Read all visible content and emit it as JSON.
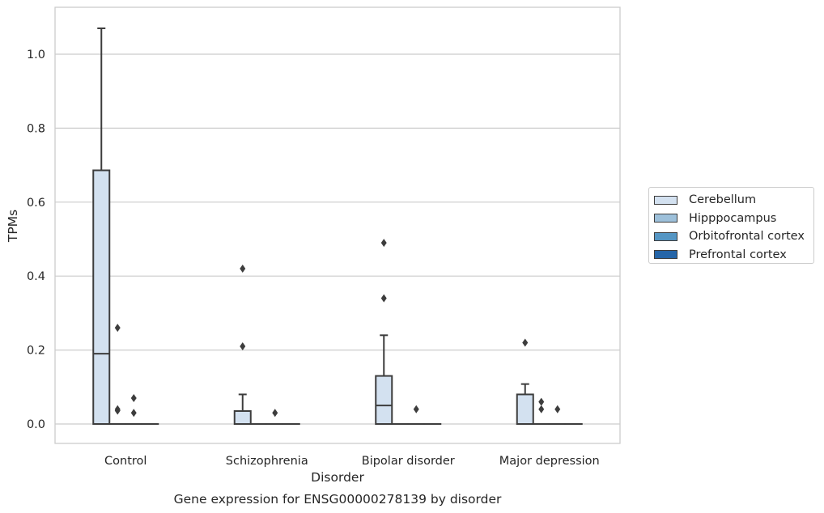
{
  "chart_data": {
    "type": "box",
    "title": "Gene expression for ENSG00000278139 by disorder",
    "xlabel": "Disorder",
    "ylabel": "TPMs",
    "ylim": [
      -0.05,
      1.13
    ],
    "yticks": [
      0.0,
      0.2,
      0.4,
      0.6,
      0.8,
      1.0
    ],
    "ytick_labels": [
      "0.0",
      "0.2",
      "0.4",
      "0.6",
      "0.8",
      "1.0"
    ],
    "grid": "horizontal",
    "legend_position": "outside-right",
    "categories": [
      "Control",
      "Schizophrenia",
      "Bipolar disorder",
      "Major depression"
    ],
    "series": [
      {
        "name": "Cerebellum",
        "color": "#d3e1f0",
        "boxes": [
          {
            "category": "Control",
            "q1": 0.0,
            "median": 0.19,
            "q3": 0.686,
            "whisker_low": 0.0,
            "whisker_high": 1.07,
            "outliers": []
          },
          {
            "category": "Schizophrenia",
            "q1": 0.0,
            "median": 0.0,
            "q3": 0.035,
            "whisker_low": 0.0,
            "whisker_high": 0.08,
            "outliers": [
              0.21,
              0.42
            ]
          },
          {
            "category": "Bipolar disorder",
            "q1": 0.0,
            "median": 0.05,
            "q3": 0.13,
            "whisker_low": 0.0,
            "whisker_high": 0.24,
            "outliers": [
              0.34,
              0.49
            ]
          },
          {
            "category": "Major depression",
            "q1": 0.0,
            "median": 0.0,
            "q3": 0.08,
            "whisker_low": 0.0,
            "whisker_high": 0.108,
            "outliers": [
              0.22
            ]
          }
        ]
      },
      {
        "name": "Hipppocampus",
        "color": "#9dc0da",
        "boxes": [
          {
            "category": "Control",
            "q1": 0.0,
            "median": 0.0,
            "q3": 0.0,
            "whisker_low": 0.0,
            "whisker_high": 0.0,
            "outliers": [
              0.036,
              0.04,
              0.26
            ]
          },
          {
            "category": "Schizophrenia",
            "q1": 0.0,
            "median": 0.0,
            "q3": 0.0,
            "whisker_low": 0.0,
            "whisker_high": 0.0,
            "outliers": []
          },
          {
            "category": "Bipolar disorder",
            "q1": 0.0,
            "median": 0.0,
            "q3": 0.0,
            "whisker_low": 0.0,
            "whisker_high": 0.0,
            "outliers": []
          },
          {
            "category": "Major depression",
            "q1": 0.0,
            "median": 0.0,
            "q3": 0.0,
            "whisker_low": 0.0,
            "whisker_high": 0.0,
            "outliers": [
              0.04,
              0.06
            ]
          }
        ]
      },
      {
        "name": "Orbitofrontal cortex",
        "color": "#5596c4",
        "boxes": [
          {
            "category": "Control",
            "q1": 0.0,
            "median": 0.0,
            "q3": 0.0,
            "whisker_low": 0.0,
            "whisker_high": 0.0,
            "outliers": [
              0.03,
              0.07
            ]
          },
          {
            "category": "Schizophrenia",
            "q1": 0.0,
            "median": 0.0,
            "q3": 0.0,
            "whisker_low": 0.0,
            "whisker_high": 0.0,
            "outliers": [
              0.03
            ]
          },
          {
            "category": "Bipolar disorder",
            "q1": 0.0,
            "median": 0.0,
            "q3": 0.0,
            "whisker_low": 0.0,
            "whisker_high": 0.0,
            "outliers": [
              0.04
            ]
          },
          {
            "category": "Major depression",
            "q1": 0.0,
            "median": 0.0,
            "q3": 0.0,
            "whisker_low": 0.0,
            "whisker_high": 0.0,
            "outliers": [
              0.04
            ]
          }
        ]
      },
      {
        "name": "Prefrontal cortex",
        "color": "#2565a8",
        "boxes": [
          {
            "category": "Control",
            "q1": 0.0,
            "median": 0.0,
            "q3": 0.0,
            "whisker_low": 0.0,
            "whisker_high": 0.0,
            "outliers": []
          },
          {
            "category": "Schizophrenia",
            "q1": 0.0,
            "median": 0.0,
            "q3": 0.0,
            "whisker_low": 0.0,
            "whisker_high": 0.0,
            "outliers": []
          },
          {
            "category": "Bipolar disorder",
            "q1": 0.0,
            "median": 0.0,
            "q3": 0.0,
            "whisker_low": 0.0,
            "whisker_high": 0.0,
            "outliers": []
          },
          {
            "category": "Major depression",
            "q1": 0.0,
            "median": 0.0,
            "q3": 0.0,
            "whisker_low": 0.0,
            "whisker_high": 0.0,
            "outliers": []
          }
        ]
      }
    ]
  }
}
